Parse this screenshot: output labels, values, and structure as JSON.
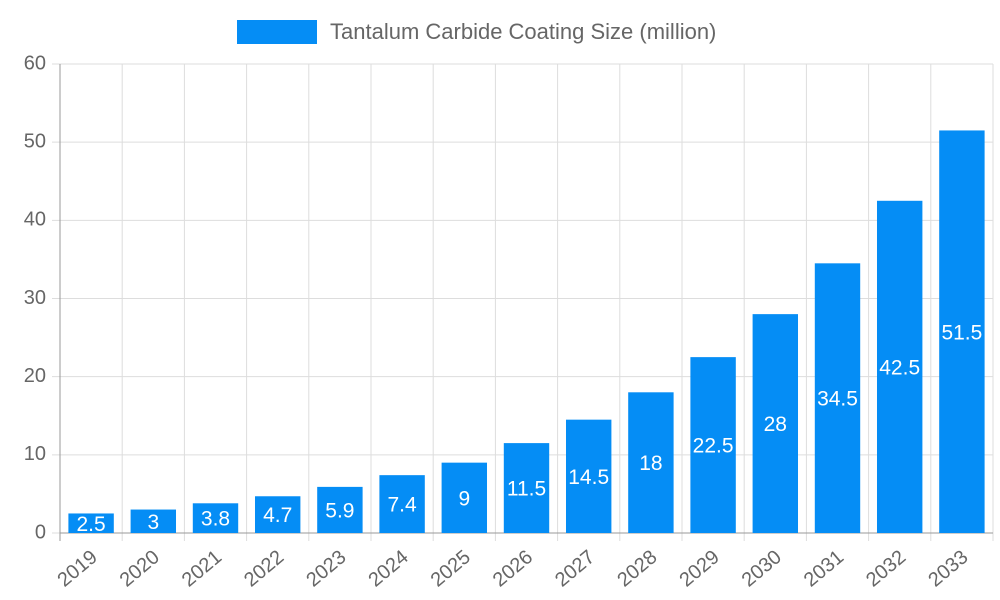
{
  "chart_data": {
    "type": "bar",
    "categories": [
      "2019",
      "2020",
      "2021",
      "2022",
      "2023",
      "2024",
      "2025",
      "2026",
      "2027",
      "2028",
      "2029",
      "2030",
      "2031",
      "2032",
      "2033"
    ],
    "series": [
      {
        "name": "Tantalum Carbide Coating Size (million)",
        "color": "#058df5",
        "values": [
          2.5,
          3,
          3.8,
          4.7,
          5.9,
          7.4,
          9,
          11.5,
          14.5,
          18,
          22.5,
          28,
          34.5,
          42.5,
          51.5
        ]
      }
    ],
    "ylim": [
      0,
      60
    ],
    "yticks": [
      0,
      10,
      20,
      30,
      40,
      50,
      60
    ],
    "grid": true,
    "legend": "top"
  }
}
